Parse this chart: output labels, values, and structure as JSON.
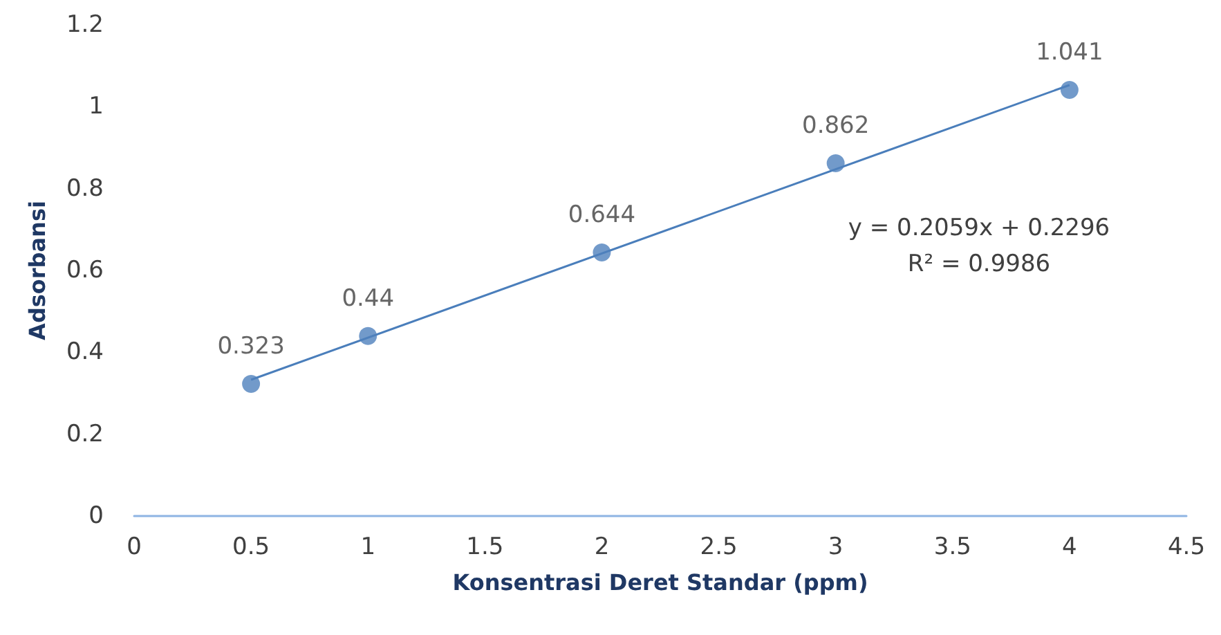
{
  "chart_data": {
    "type": "scatter",
    "xlabel": "Konsentrasi Deret Standar (ppm)",
    "ylabel": "Adsorbansi",
    "xlim": [
      0,
      4.5
    ],
    "xticks": [
      0,
      0.5,
      1,
      1.5,
      2,
      2.5,
      3,
      3.5,
      4,
      4.5
    ],
    "ylim": [
      0,
      1.2
    ],
    "yticks": [
      0,
      0.2,
      0.4,
      0.6,
      0.8,
      1,
      1.2
    ],
    "grid": false,
    "marker": "circle",
    "annotations": [
      "y = 0.2059x + 0.2296",
      "R² = 0.9986"
    ],
    "series": [
      {
        "color": "#4f81bd",
        "x": [
          0.5,
          1,
          2,
          3,
          4
        ],
        "values": [
          0.323,
          0.44,
          0.644,
          0.862,
          1.041
        ],
        "value_labels": [
          "0.323",
          "0.44",
          "0.644",
          "0.862",
          "1.041"
        ]
      },
      {
        "type": "line",
        "color": "#4a7ebb",
        "marker": "none",
        "line_style": "solid",
        "x": [
          0.5,
          4
        ],
        "values": [
          0.333,
          1.053
        ]
      }
    ]
  }
}
